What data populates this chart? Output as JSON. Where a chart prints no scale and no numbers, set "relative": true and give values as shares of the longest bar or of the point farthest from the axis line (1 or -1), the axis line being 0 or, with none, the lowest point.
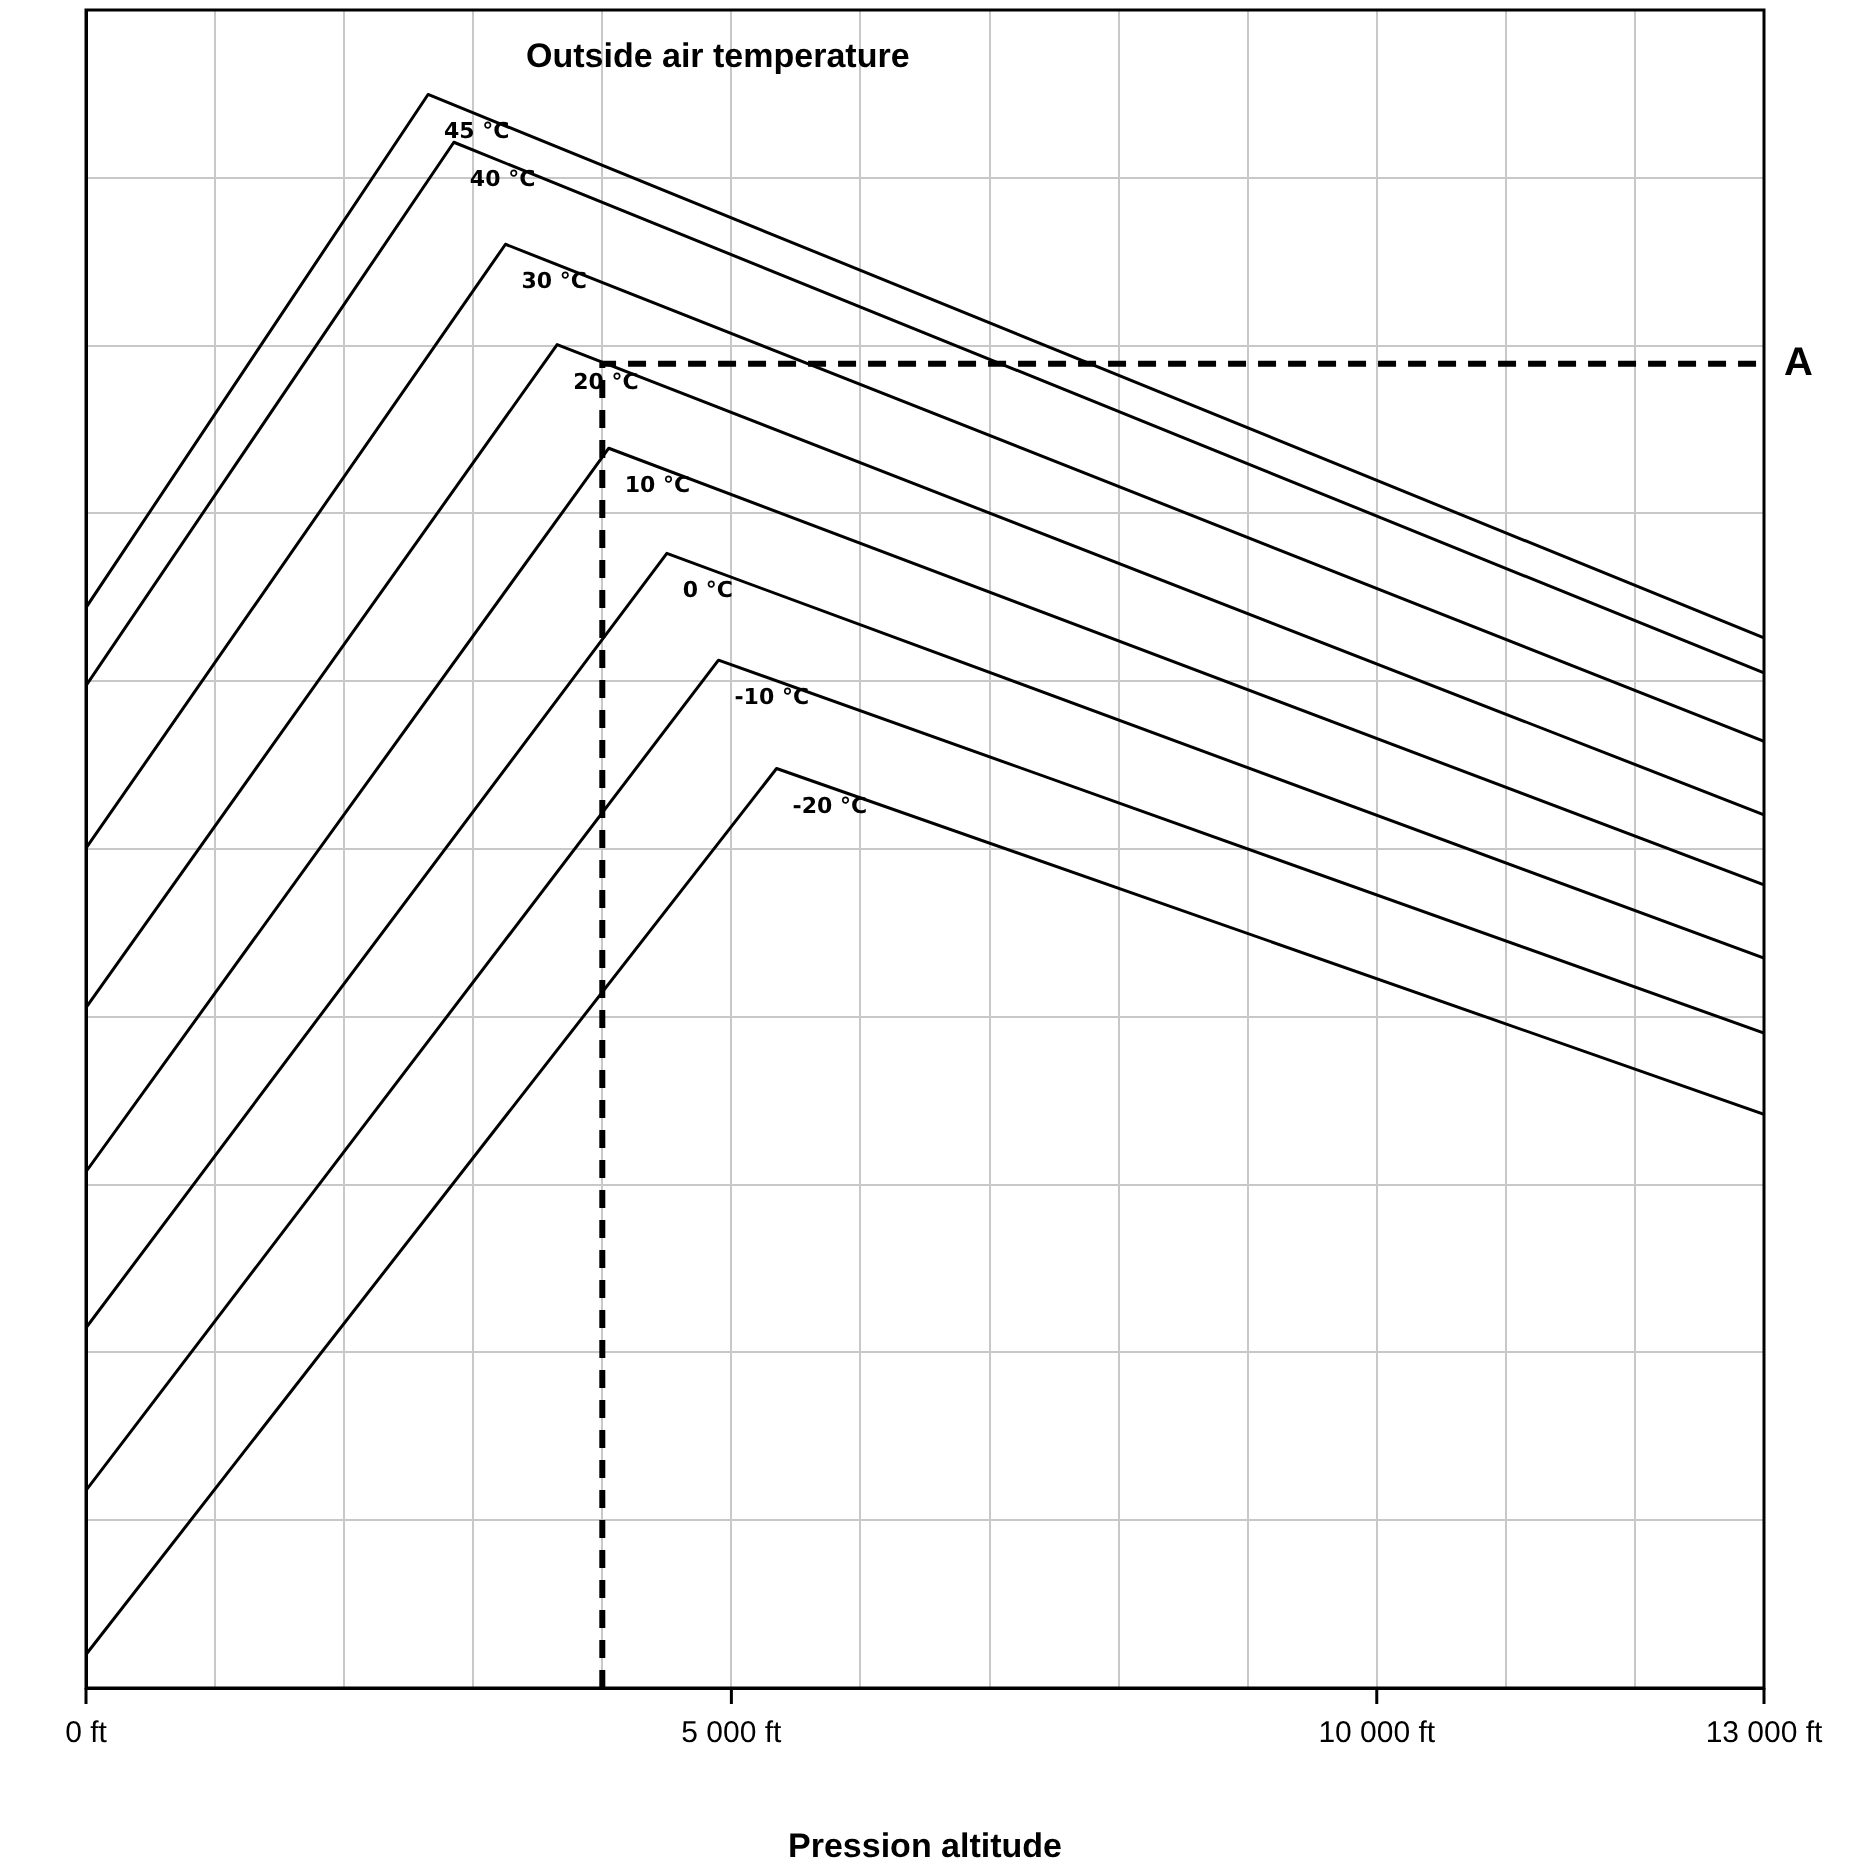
{
  "chart_data": {
    "type": "line",
    "title": "Outside air temperature",
    "xlabel": "Pression altitude",
    "relative": true,
    "grid": true,
    "legend": false,
    "marker": "none",
    "line_style": "solid",
    "xlim": [
      0,
      13000
    ],
    "xticks": [
      {
        "value": 0,
        "label": "0 ft"
      },
      {
        "value": 1000,
        "label": null
      },
      {
        "value": 2000,
        "label": null
      },
      {
        "value": 3000,
        "label": null
      },
      {
        "value": 4000,
        "label": null
      },
      {
        "value": 5000,
        "label": "5 000 ft"
      },
      {
        "value": 6000,
        "label": null
      },
      {
        "value": 7000,
        "label": null
      },
      {
        "value": 8000,
        "label": null
      },
      {
        "value": 9000,
        "label": null
      },
      {
        "value": 10000,
        "label": "10 000 ft"
      },
      {
        "value": 11000,
        "label": null
      },
      {
        "value": 12000,
        "label": null
      },
      {
        "value": 13000,
        "label": "13 000 ft"
      }
    ],
    "series": [
      {
        "name": "45 °C",
        "color": "#000000",
        "x": [
          0,
          2650,
          13000
        ],
        "values": [
          0.678,
          1,
          0.659
        ]
      },
      {
        "name": "40 °C",
        "color": "#000000",
        "x": [
          0,
          2850,
          13000
        ],
        "values": [
          0.629,
          0.97,
          0.637
        ]
      },
      {
        "name": "30 °C",
        "color": "#000000",
        "x": [
          0,
          3250,
          13000
        ],
        "values": [
          0.527,
          0.906,
          0.594
        ]
      },
      {
        "name": "20 °C",
        "color": "#000000",
        "x": [
          0,
          3650,
          13000
        ],
        "values": [
          0.427,
          0.843,
          0.548
        ]
      },
      {
        "name": "10 °C",
        "color": "#000000",
        "x": [
          0,
          4050,
          13000
        ],
        "values": [
          0.324,
          0.778,
          0.504
        ]
      },
      {
        "name": "0 °C",
        "color": "#000000",
        "x": [
          0,
          4500,
          13000
        ],
        "values": [
          0.226,
          0.712,
          0.458
        ]
      },
      {
        "name": "-10 °C",
        "color": "#000000",
        "x": [
          0,
          4900,
          13000
        ],
        "values": [
          0.124,
          0.645,
          0.411
        ]
      },
      {
        "name": "-20 °C",
        "color": "#000000",
        "x": [
          0,
          5350,
          13000
        ],
        "values": [
          0.021,
          0.577,
          0.36
        ]
      },
      {
        "type": "line",
        "line_style": "dashed",
        "color": "#000000",
        "x": [
          4000,
          4000,
          13000
        ],
        "values": [
          0,
          0.831,
          0.831
        ]
      }
    ],
    "annotations": [
      "A"
    ]
  }
}
